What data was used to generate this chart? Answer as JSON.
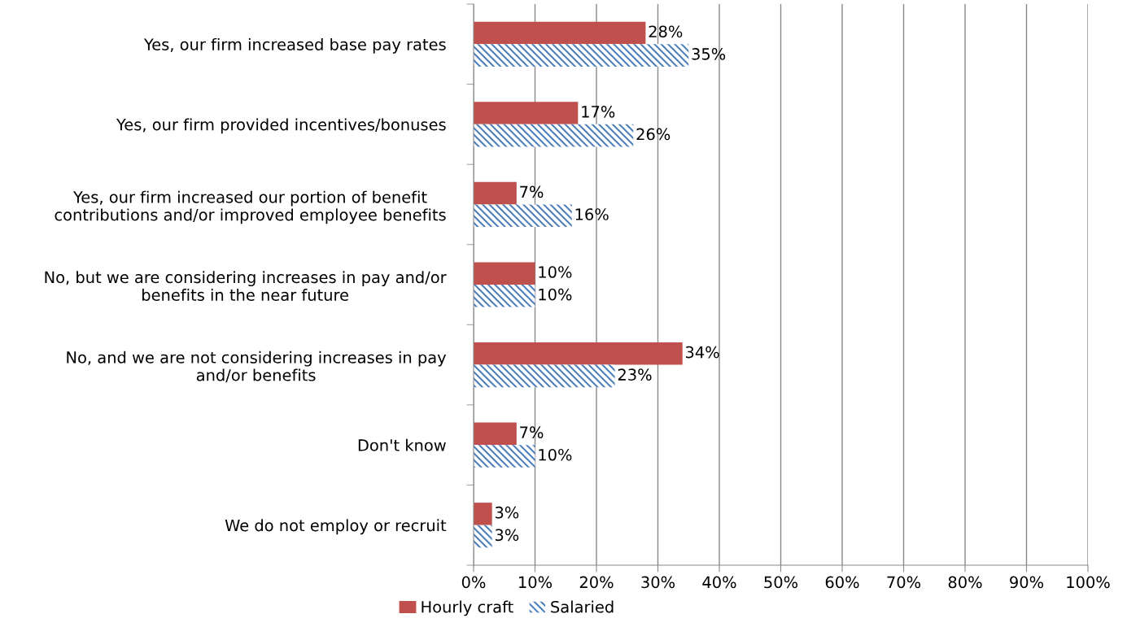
{
  "chart_data": {
    "type": "bar",
    "orientation": "horizontal",
    "categories": [
      "Yes, our firm increased base pay rates",
      "Yes, our firm provided incentives/bonuses",
      "Yes, our firm increased our portion of benefit\ncontributions and/or improved employee benefits",
      "No, but we are considering increases in pay and/or\nbenefits in the near future",
      "No, and we are not considering increases in pay\nand/or benefits",
      "Don't know",
      "We do not employ or recruit"
    ],
    "series": [
      {
        "name": "Hourly craft",
        "color": "#c0504d",
        "values": [
          28,
          17,
          7,
          10,
          34,
          7,
          3
        ],
        "value_labels": [
          "28%",
          "17%",
          "7%",
          "10%",
          "34%",
          "7%",
          "3%"
        ]
      },
      {
        "name": "Salaried",
        "color": "#4f81bd",
        "values": [
          35,
          26,
          16,
          10,
          23,
          10,
          3
        ],
        "value_labels": [
          "35%",
          "26%",
          "16%",
          "10%",
          "23%",
          "10%",
          "3%"
        ]
      }
    ],
    "xlim": [
      0,
      100
    ],
    "xticks": [
      {
        "value": 0,
        "label": "0%"
      },
      {
        "value": 10,
        "label": "10%"
      },
      {
        "value": 20,
        "label": "20%"
      },
      {
        "value": 30,
        "label": "30%"
      },
      {
        "value": 40,
        "label": "40%"
      },
      {
        "value": 50,
        "label": "50%"
      },
      {
        "value": 60,
        "label": "60%"
      },
      {
        "value": 70,
        "label": "70%"
      },
      {
        "value": 80,
        "label": "80%"
      },
      {
        "value": 90,
        "label": "90%"
      },
      {
        "value": 100,
        "label": "100%"
      }
    ],
    "grid": "x",
    "legend": "bottom"
  }
}
